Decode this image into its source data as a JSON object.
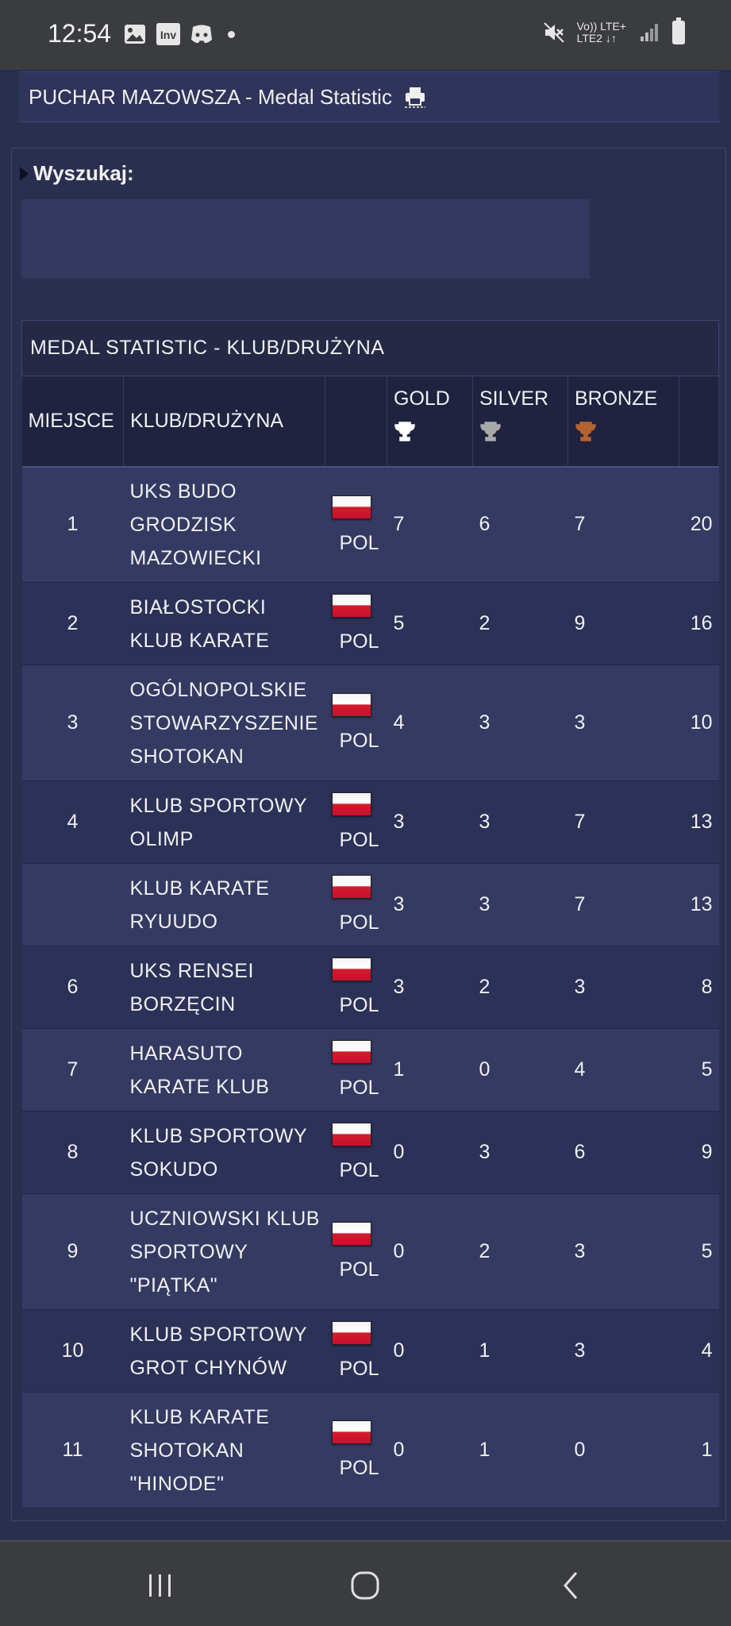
{
  "status_bar": {
    "time": "12:54",
    "left_icons": [
      "image-icon",
      "inv-icon",
      "discord-icon",
      "dot-icon"
    ],
    "right_icons": [
      "mute-icon",
      "signal-lte-icon",
      "signal-bars-icon",
      "battery-icon"
    ],
    "network_line1": "Vo)) LTE+",
    "network_line2": "LTE2 ↓↑",
    "inv_label": "Inv"
  },
  "header": {
    "title": "PUCHAR MAZOWSZA - Medal Statistic",
    "print_icon": "print-icon"
  },
  "search": {
    "label": "Wyszukaj:"
  },
  "table": {
    "caption": "MEDAL STATISTIC - KLUB/DRUŻYNA",
    "columns": {
      "rank": "MIEJSCE",
      "club": "KLUB/DRUŻYNA",
      "country": "",
      "gold": "GOLD",
      "silver": "SILVER",
      "bronze": "BRONZE",
      "total": ""
    },
    "colors": {
      "gold_trophy": "#ffffff",
      "silver_trophy": "#a9a9a9",
      "bronze_trophy": "#b4622f"
    },
    "rows": [
      {
        "rank": "1",
        "club": "UKS BUDO GRODZISK MAZOWIECKI",
        "country": "POL",
        "gold": "7",
        "silver": "6",
        "bronze": "7",
        "total": "20"
      },
      {
        "rank": "2",
        "club": "BIAŁOSTOCKI KLUB KARATE",
        "country": "POL",
        "gold": "5",
        "silver": "2",
        "bronze": "9",
        "total": "16"
      },
      {
        "rank": "3",
        "club": "OGÓLNOPOLSKIE STOWARZYSZENIE SHOTOKAN",
        "country": "POL",
        "gold": "4",
        "silver": "3",
        "bronze": "3",
        "total": "10"
      },
      {
        "rank": "4",
        "club": "KLUB SPORTOWY OLIMP",
        "country": "POL",
        "gold": "3",
        "silver": "3",
        "bronze": "7",
        "total": "13"
      },
      {
        "rank": "",
        "club": "KLUB KARATE RYUUDO",
        "country": "POL",
        "gold": "3",
        "silver": "3",
        "bronze": "7",
        "total": "13"
      },
      {
        "rank": "6",
        "club": "UKS RENSEI BORZĘCIN",
        "country": "POL",
        "gold": "3",
        "silver": "2",
        "bronze": "3",
        "total": "8"
      },
      {
        "rank": "7",
        "club": "HARASUTO KARATE KLUB",
        "country": "POL",
        "gold": "1",
        "silver": "0",
        "bronze": "4",
        "total": "5"
      },
      {
        "rank": "8",
        "club": "KLUB SPORTOWY SOKUDO",
        "country": "POL",
        "gold": "0",
        "silver": "3",
        "bronze": "6",
        "total": "9"
      },
      {
        "rank": "9",
        "club": "UCZNIOWSKI KLUB SPORTOWY \"PIĄTKA\"",
        "country": "POL",
        "gold": "0",
        "silver": "2",
        "bronze": "3",
        "total": "5"
      },
      {
        "rank": "10",
        "club": "KLUB SPORTOWY GROT CHYNÓW",
        "country": "POL",
        "gold": "0",
        "silver": "1",
        "bronze": "3",
        "total": "4"
      },
      {
        "rank": "11",
        "club": "KLUB KARATE SHOTOKAN \"HINODE\"",
        "country": "POL",
        "gold": "0",
        "silver": "1",
        "bronze": "0",
        "total": "1"
      }
    ]
  },
  "nav_bar": {
    "buttons": [
      "recent-apps-icon",
      "home-icon",
      "back-icon"
    ]
  }
}
